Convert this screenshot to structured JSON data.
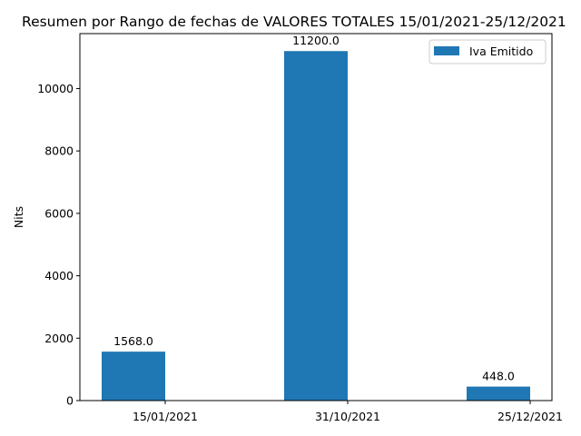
{
  "chart_data": {
    "type": "bar",
    "title": "Resumen por Rango de fechas de VALORES TOTALES 15/01/2021-25/12/2021",
    "xlabel": "",
    "ylabel": "Nits",
    "categories": [
      "15/01/2021",
      "31/10/2021",
      "25/12/2021"
    ],
    "series": [
      {
        "name": "Iva Emitido",
        "values": [
          1568.0,
          11200.0,
          448.0
        ],
        "color": "#1f77b4"
      }
    ],
    "data_labels": [
      "1568.0",
      "11200.0",
      "448.0"
    ],
    "ylim": [
      0,
      11760
    ],
    "yticks": [
      0,
      2000,
      4000,
      6000,
      8000,
      10000
    ],
    "grid": false,
    "legend_position": "top-right"
  }
}
